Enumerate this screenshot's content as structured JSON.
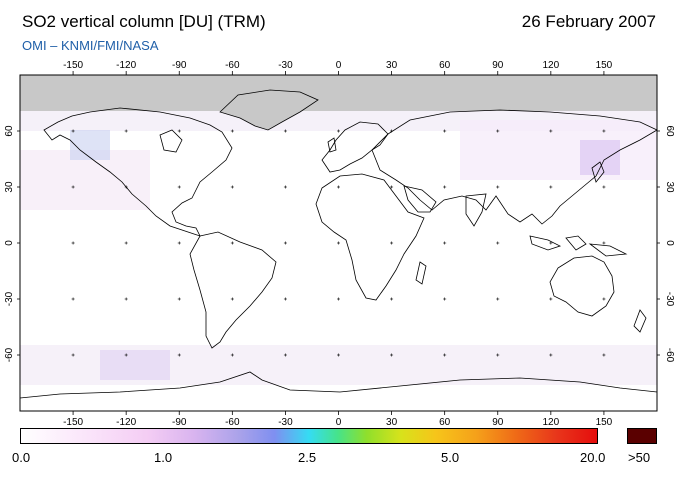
{
  "header": {
    "title": "SO2 vertical column [DU] (TRM)",
    "date": "26 February 2007",
    "credit": "OMI  –  KNMI/FMI/NASA"
  },
  "map": {
    "lon_ticks": [
      "-150",
      "-120",
      "-90",
      "-60",
      "-30",
      "0",
      "30",
      "60",
      "90",
      "120",
      "150"
    ],
    "lat_ticks": [
      "60",
      "30",
      "0",
      "-30",
      "-60"
    ],
    "lon_range": [
      -180,
      180
    ],
    "lat_range": [
      -90,
      90
    ],
    "no_data_fill": "#c8c8c8",
    "coastline_color": "#000000"
  },
  "colorbar": {
    "labels": [
      "0.0",
      "1.0",
      "2.5",
      "5.0",
      "20.0",
      ">50"
    ],
    "overflow_color": "#5a0000"
  }
}
